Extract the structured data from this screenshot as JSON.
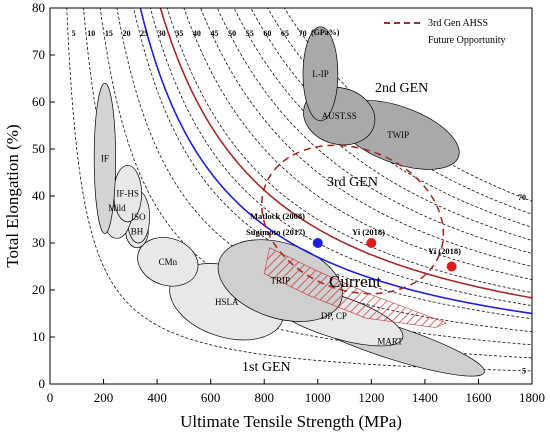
{
  "chart_data": {
    "type": "scatter",
    "xlabel": "Ultimate Tensile Strength (MPa)",
    "ylabel": "Total Elongation (%)",
    "xlim": [
      0,
      1800
    ],
    "ylim": [
      0,
      80
    ],
    "x_ticks": [
      0,
      200,
      400,
      600,
      800,
      1000,
      1200,
      1400,
      1600,
      1800
    ],
    "y_ticks": [
      0,
      10,
      20,
      30,
      40,
      50,
      60,
      70,
      80
    ],
    "grid": false,
    "legend_position": "top-right",
    "legend": [
      {
        "label_line1": "3rd Gen AHSS",
        "label_line2": "Future Opportunity",
        "style": "dashed",
        "color": "#a52a2a"
      }
    ],
    "isolines": {
      "unit_label": "(GPa%)",
      "values": [
        5,
        10,
        15,
        20,
        25,
        30,
        35,
        40,
        45,
        50,
        55,
        60,
        65,
        70
      ],
      "top_labels": [
        "5",
        "10",
        "15",
        "20",
        "25",
        "30",
        "35",
        "40",
        "45",
        "50",
        "55",
        "60",
        "65",
        "70"
      ],
      "right_labels": [
        "70",
        "5"
      ]
    },
    "curves": [
      {
        "name": "blue boundary",
        "color": "#1f1fe0",
        "product_gpa_pct": 27
      },
      {
        "name": "red boundary",
        "color": "#a52a2a",
        "product_gpa_pct": 33
      }
    ],
    "regions": [
      {
        "label": "IF",
        "generation": "1st GEN",
        "cx": 205,
        "cy": 48,
        "rx": 40,
        "ry": 16
      },
      {
        "label": "IF-HS",
        "generation": "1st GEN",
        "cx": 290,
        "cy": 40.5,
        "rx": 52,
        "ry": 6
      },
      {
        "label": "Mild",
        "generation": "1st GEN",
        "cx": 250,
        "cy": 37.5,
        "rx": 58,
        "ry": 6.5
      },
      {
        "label": "ISO",
        "generation": "1st GEN",
        "cx": 330,
        "cy": 35.5,
        "rx": 42,
        "ry": 5.5
      },
      {
        "label": "BH",
        "generation": "1st GEN",
        "cx": 325,
        "cy": 32.5,
        "rx": 42,
        "ry": 3.5
      },
      {
        "label": "CMn",
        "generation": "1st GEN",
        "cx": 440,
        "cy": 26,
        "rx": 115,
        "ry": 5
      },
      {
        "label": "HSLA",
        "generation": "1st GEN",
        "cx": 660,
        "cy": 17.5,
        "rx": 220,
        "ry": 7.5
      },
      {
        "label": "TRIP",
        "generation": "1st GEN",
        "cx": 860,
        "cy": 22,
        "rx": 240,
        "ry": 8
      },
      {
        "label": "DP, CP",
        "generation": "1st GEN",
        "cx": 1060,
        "cy": 14.5,
        "rx": 270,
        "ry": 4.5
      },
      {
        "label": "MART",
        "generation": "1st GEN",
        "cx": 1270,
        "cy": 9,
        "rx": 370,
        "ry": 3.5
      },
      {
        "label": "L-IP",
        "generation": "2nd GEN",
        "cx": 1010,
        "cy": 66,
        "rx": 65,
        "ry": 10
      },
      {
        "label": "AUST.SS",
        "generation": "2nd GEN",
        "cx": 1080,
        "cy": 57,
        "rx": 135,
        "ry": 6
      },
      {
        "label": "TWIP",
        "generation": "2nd GEN",
        "cx": 1300,
        "cy": 53,
        "rx": 240,
        "ry": 6
      }
    ],
    "generation_labels": [
      "1st GEN",
      "2nd GEN",
      "3rd GEN"
    ],
    "current_region_label": "Current",
    "points": [
      {
        "label_line1": "Matlock (2008)",
        "label_line2": "Sugimoto (2017)",
        "x": 1000,
        "y": 30,
        "color": "#1f1fe0"
      },
      {
        "label_line1": "Yi (2018)",
        "label_line2": "",
        "x": 1200,
        "y": 30,
        "color": "#e31a1c"
      },
      {
        "label_line1": "Yi (2018)",
        "label_line2": "",
        "x": 1500,
        "y": 25,
        "color": "#e31a1c"
      }
    ]
  }
}
